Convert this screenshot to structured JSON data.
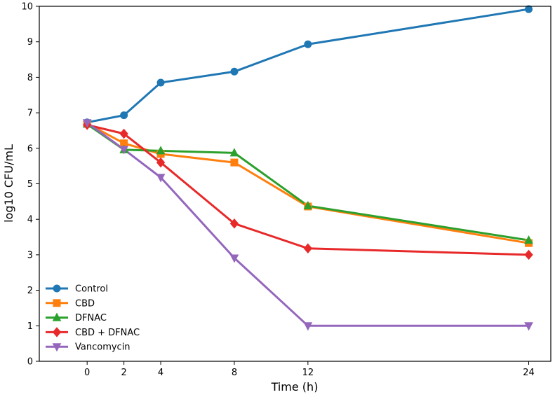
{
  "chart_data": {
    "type": "line",
    "title": "",
    "xlabel": "Time (h)",
    "ylabel": "log10 CFU/mL",
    "x": [
      0,
      2,
      4,
      8,
      12,
      24
    ],
    "xticks": [
      0,
      2,
      4,
      8,
      12,
      24
    ],
    "yticks": [
      0,
      1,
      2,
      3,
      4,
      5,
      6,
      7,
      8,
      9,
      10
    ],
    "xlim": [
      -2.6,
      25.2
    ],
    "ylim": [
      0,
      10
    ],
    "grid": false,
    "legend_position": "lower-left",
    "series": [
      {
        "name": "Control",
        "color": "#1f77b4",
        "marker": "circle",
        "values": [
          6.73,
          6.93,
          7.85,
          8.16,
          8.93,
          9.92
        ]
      },
      {
        "name": "CBD",
        "color": "#ff7f0e",
        "marker": "square",
        "values": [
          6.7,
          6.14,
          5.84,
          5.6,
          4.36,
          3.33
        ]
      },
      {
        "name": "DFNAC",
        "color": "#2ca02c",
        "marker": "triangle-up",
        "values": [
          6.68,
          5.96,
          5.93,
          5.87,
          4.38,
          3.41
        ]
      },
      {
        "name": "CBD + DFNAC",
        "color": "#e8292a",
        "marker": "diamond",
        "values": [
          6.66,
          6.41,
          5.6,
          3.88,
          3.18,
          3.0
        ]
      },
      {
        "name": "Vancomycin",
        "color": "#9467bd",
        "marker": "triangle-down",
        "values": [
          6.72,
          5.97,
          5.18,
          2.91,
          1.0,
          1.0
        ]
      }
    ]
  }
}
